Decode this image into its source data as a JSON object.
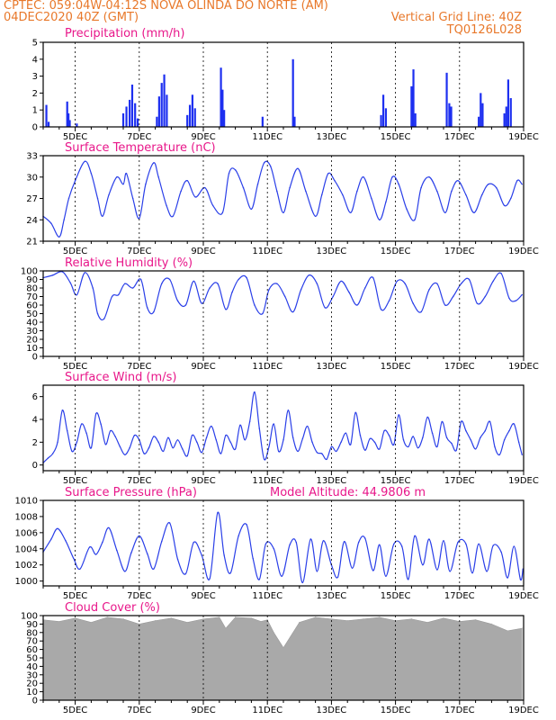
{
  "header": {
    "line1": "CPTEC:   059:04W-04:12S   NOVA OLINDA DO NORTE (AM)",
    "line2": "04DEC2020 40Z (GMT)",
    "grid_note": "Vertical Grid Line: 40Z",
    "code": "TQ0126L028"
  },
  "x_ticks": [
    "5DEC",
    "7DEC",
    "9DEC",
    "11DEC",
    "13DEC",
    "15DEC",
    "17DEC",
    "19DEC"
  ],
  "colors": {
    "header": "#e8782a",
    "title": "#e8178a",
    "line": "#2a3fe8",
    "bar": "#1d2ff0",
    "cloud": "#a9a9a9"
  },
  "chart_data": [
    {
      "id": "precip",
      "type": "bar",
      "title": "Precipitation (mm/h)",
      "ylim": [
        0,
        5
      ],
      "yticks": [
        0,
        1,
        2,
        3,
        4,
        5
      ],
      "x": [
        4.1,
        4.17,
        4.75,
        4.79,
        4.83,
        5.05,
        6.5,
        6.6,
        6.7,
        6.78,
        6.87,
        6.95,
        7.55,
        7.62,
        7.7,
        7.78,
        7.86,
        8.5,
        8.58,
        8.66,
        8.74,
        9.55,
        9.6,
        9.65,
        10.85,
        11.8,
        11.85,
        14.55,
        14.62,
        14.7,
        15.5,
        15.56,
        15.62,
        16.6,
        16.68,
        16.74,
        17.6,
        17.66,
        17.72,
        18.4,
        18.46,
        18.52,
        18.6
      ],
      "values": [
        1.3,
        0.3,
        1.5,
        0.8,
        0.4,
        0.2,
        0.8,
        1.2,
        1.6,
        2.5,
        1.4,
        0.5,
        0.6,
        1.8,
        2.6,
        3.1,
        1.9,
        0.7,
        1.3,
        1.9,
        1.1,
        3.5,
        2.2,
        1.0,
        0.6,
        4.0,
        0.6,
        0.7,
        1.9,
        1.1,
        2.4,
        3.4,
        0.8,
        3.2,
        1.4,
        1.2,
        0.6,
        2.0,
        1.4,
        0.8,
        1.2,
        2.8,
        1.7
      ]
    },
    {
      "id": "temp",
      "type": "line",
      "title": "Surface Temperature (nC)",
      "ylim": [
        21,
        33
      ],
      "yticks": [
        21,
        24,
        27,
        30,
        33
      ],
      "x": [
        4.0,
        4.25,
        4.5,
        4.65,
        4.8,
        5.0,
        5.3,
        5.5,
        5.7,
        5.85,
        6.05,
        6.3,
        6.5,
        6.6,
        6.8,
        7.0,
        7.2,
        7.45,
        7.6,
        7.85,
        8.05,
        8.3,
        8.5,
        8.75,
        9.05,
        9.3,
        9.6,
        9.8,
        10.0,
        10.25,
        10.5,
        10.7,
        10.9,
        11.1,
        11.3,
        11.5,
        11.7,
        11.95,
        12.2,
        12.5,
        12.7,
        12.9,
        13.1,
        13.35,
        13.6,
        13.8,
        14.0,
        14.25,
        14.5,
        14.7,
        14.9,
        15.1,
        15.35,
        15.6,
        15.8,
        16.05,
        16.3,
        16.55,
        16.75,
        16.95,
        17.2,
        17.45,
        17.7,
        17.9,
        18.15,
        18.4,
        18.6,
        18.8,
        18.95
      ],
      "values": [
        24.5,
        23.5,
        21.6,
        24.0,
        27.0,
        29.5,
        32.2,
        30.5,
        27.0,
        24.5,
        27.5,
        30.0,
        29.0,
        30.5,
        27.0,
        24.2,
        29.0,
        32.0,
        30.0,
        26.0,
        24.5,
        28.0,
        29.5,
        27.2,
        28.5,
        26.0,
        25.0,
        30.5,
        31.0,
        28.5,
        25.5,
        29.0,
        32.0,
        31.5,
        28.0,
        25.0,
        28.5,
        31.2,
        28.0,
        24.5,
        27.5,
        30.5,
        29.5,
        27.5,
        25.0,
        28.0,
        30.0,
        27.0,
        24.0,
        26.5,
        30.0,
        29.0,
        25.5,
        24.0,
        28.5,
        30.0,
        28.0,
        25.0,
        28.0,
        29.5,
        27.5,
        25.0,
        27.5,
        29.0,
        28.5,
        26.0,
        27.0,
        29.5,
        29.0
      ]
    },
    {
      "id": "rh",
      "type": "line",
      "title": "Relative Humidity (%)",
      "ylim": [
        0,
        100
      ],
      "yticks": [
        0,
        10,
        20,
        30,
        40,
        50,
        60,
        70,
        80,
        90,
        100
      ],
      "x": [
        4.0,
        4.3,
        4.6,
        4.85,
        5.05,
        5.3,
        5.55,
        5.7,
        5.9,
        6.15,
        6.35,
        6.55,
        6.8,
        7.05,
        7.25,
        7.45,
        7.7,
        7.95,
        8.2,
        8.45,
        8.7,
        8.95,
        9.2,
        9.45,
        9.7,
        9.9,
        10.1,
        10.35,
        10.6,
        10.85,
        11.05,
        11.3,
        11.55,
        11.8,
        12.05,
        12.3,
        12.55,
        12.8,
        13.05,
        13.3,
        13.55,
        13.8,
        14.05,
        14.3,
        14.55,
        14.8,
        15.05,
        15.3,
        15.55,
        15.8,
        16.05,
        16.3,
        16.55,
        16.8,
        17.05,
        17.3,
        17.55,
        17.8,
        18.05,
        18.3,
        18.55,
        18.75,
        18.95
      ],
      "values": [
        92,
        95,
        99,
        86,
        72,
        98,
        80,
        50,
        44,
        70,
        72,
        85,
        80,
        90,
        57,
        52,
        85,
        90,
        65,
        60,
        88,
        62,
        80,
        85,
        55,
        75,
        90,
        92,
        60,
        50,
        78,
        85,
        70,
        52,
        78,
        95,
        85,
        57,
        70,
        88,
        75,
        60,
        80,
        92,
        55,
        65,
        88,
        85,
        62,
        52,
        78,
        85,
        60,
        70,
        85,
        90,
        62,
        70,
        88,
        97,
        68,
        65,
        72
      ]
    },
    {
      "id": "wind",
      "type": "line",
      "title": "Surface Wind (m/s)",
      "ylim": [
        -0.5,
        7
      ],
      "yticks": [
        0,
        2,
        4,
        6
      ],
      "x": [
        4.0,
        4.15,
        4.3,
        4.45,
        4.6,
        4.75,
        4.9,
        5.05,
        5.2,
        5.35,
        5.5,
        5.65,
        5.8,
        5.95,
        6.1,
        6.25,
        6.4,
        6.55,
        6.7,
        6.85,
        7.0,
        7.15,
        7.3,
        7.45,
        7.6,
        7.75,
        7.9,
        8.05,
        8.2,
        8.35,
        8.5,
        8.65,
        8.8,
        8.95,
        9.1,
        9.25,
        9.4,
        9.55,
        9.7,
        9.85,
        10.0,
        10.15,
        10.3,
        10.45,
        10.6,
        10.75,
        10.9,
        11.05,
        11.2,
        11.35,
        11.5,
        11.65,
        11.8,
        11.95,
        12.1,
        12.25,
        12.4,
        12.55,
        12.7,
        12.85,
        13.0,
        13.15,
        13.3,
        13.45,
        13.6,
        13.75,
        13.9,
        14.05,
        14.2,
        14.35,
        14.5,
        14.65,
        14.8,
        14.95,
        15.1,
        15.25,
        15.4,
        15.55,
        15.7,
        15.85,
        16.0,
        16.15,
        16.3,
        16.45,
        16.6,
        16.75,
        16.9,
        17.05,
        17.2,
        17.35,
        17.5,
        17.65,
        17.8,
        17.95,
        18.1,
        18.25,
        18.4,
        18.55,
        18.7,
        18.85,
        18.95
      ],
      "values": [
        0.2,
        0.6,
        1.0,
        2.0,
        4.8,
        3.0,
        1.2,
        2.0,
        3.6,
        2.8,
        1.5,
        4.5,
        3.6,
        1.8,
        3.0,
        2.5,
        1.6,
        0.9,
        1.5,
        2.6,
        2.2,
        1.0,
        1.5,
        2.5,
        2.0,
        1.2,
        2.4,
        1.5,
        2.2,
        1.4,
        0.8,
        2.6,
        2.0,
        1.1,
        2.4,
        3.4,
        2.2,
        1.0,
        2.6,
        2.0,
        1.4,
        3.5,
        2.2,
        3.8,
        6.4,
        3.2,
        0.5,
        1.6,
        3.6,
        1.2,
        2.2,
        4.8,
        2.4,
        1.2,
        2.3,
        3.4,
        2.0,
        1.1,
        1.0,
        0.5,
        1.6,
        1.2,
        2.0,
        2.8,
        1.8,
        4.6,
        2.6,
        1.3,
        2.3,
        2.0,
        1.4,
        3.0,
        2.6,
        1.8,
        4.4,
        2.2,
        1.6,
        2.5,
        1.5,
        2.4,
        4.2,
        2.8,
        1.6,
        3.8,
        2.4,
        1.9,
        1.3,
        3.8,
        3.0,
        2.2,
        1.4,
        2.4,
        3.0,
        3.8,
        1.6,
        0.9,
        2.2,
        3.0,
        3.6,
        2.0,
        0.9
      ]
    },
    {
      "id": "pressure",
      "type": "line",
      "title": "Surface Pressure (hPa)",
      "annotation": "Model Altitude: 44.9806 m",
      "ylim": [
        999.4,
        1010
      ],
      "yticks": [
        1000,
        1002,
        1004,
        1006,
        1008,
        1010
      ],
      "x": [
        4.0,
        4.25,
        4.45,
        4.7,
        4.95,
        5.15,
        5.45,
        5.65,
        5.85,
        6.05,
        6.3,
        6.55,
        6.75,
        7.0,
        7.25,
        7.45,
        7.7,
        7.95,
        8.2,
        8.45,
        8.7,
        8.95,
        9.2,
        9.45,
        9.65,
        9.85,
        10.1,
        10.35,
        10.55,
        10.75,
        10.95,
        11.2,
        11.45,
        11.7,
        11.9,
        12.1,
        12.35,
        12.55,
        12.75,
        13.0,
        13.2,
        13.4,
        13.65,
        13.85,
        14.05,
        14.3,
        14.5,
        14.7,
        14.95,
        15.2,
        15.4,
        15.6,
        15.85,
        16.05,
        16.3,
        16.5,
        16.7,
        16.95,
        17.2,
        17.4,
        17.6,
        17.85,
        18.05,
        18.3,
        18.5,
        18.7,
        18.9,
        18.98
      ],
      "values": [
        1003.6,
        1005.2,
        1006.5,
        1005.0,
        1002.8,
        1001.5,
        1004.2,
        1003.3,
        1004.8,
        1006.6,
        1003.8,
        1001.2,
        1003.5,
        1005.6,
        1003.4,
        1001.5,
        1004.9,
        1007.2,
        1002.7,
        1000.9,
        1004.8,
        1003.2,
        1000.3,
        1008.5,
        1003.2,
        1001.0,
        1005.6,
        1007.0,
        1002.8,
        1000.2,
        1004.6,
        1004.0,
        1000.6,
        1004.5,
        1004.8,
        999.8,
        1005.2,
        1001.2,
        1005.0,
        1002.0,
        1000.5,
        1004.9,
        1001.6,
        1004.8,
        1005.3,
        1001.3,
        1004.5,
        1000.6,
        1004.6,
        1004.3,
        1000.2,
        1005.6,
        1002.0,
        1005.2,
        1001.4,
        1005.0,
        1001.2,
        1004.8,
        1004.6,
        1001.0,
        1004.6,
        1001.2,
        1004.4,
        1003.6,
        1000.4,
        1004.3,
        1000.2,
        1001.5
      ]
    },
    {
      "id": "cloud",
      "type": "area",
      "title": "Cloud Cover (%)",
      "ylim": [
        0,
        100
      ],
      "yticks": [
        0,
        10,
        20,
        30,
        40,
        50,
        60,
        70,
        80,
        90,
        100
      ],
      "x": [
        4.0,
        4.5,
        5.0,
        5.5,
        6.0,
        6.5,
        7.0,
        7.5,
        8.0,
        8.5,
        9.0,
        9.5,
        9.7,
        10.0,
        10.5,
        10.8,
        11.0,
        11.2,
        11.5,
        12.0,
        12.5,
        13.0,
        13.5,
        14.0,
        14.5,
        15.0,
        15.5,
        16.0,
        16.5,
        17.0,
        17.5,
        18.0,
        18.5,
        18.95
      ],
      "values": [
        95,
        93,
        97,
        92,
        98,
        96,
        90,
        94,
        97,
        92,
        96,
        98,
        85,
        98,
        97,
        93,
        95,
        80,
        62,
        92,
        98,
        96,
        94,
        96,
        98,
        94,
        96,
        92,
        97,
        93,
        95,
        90,
        82,
        85
      ]
    }
  ]
}
